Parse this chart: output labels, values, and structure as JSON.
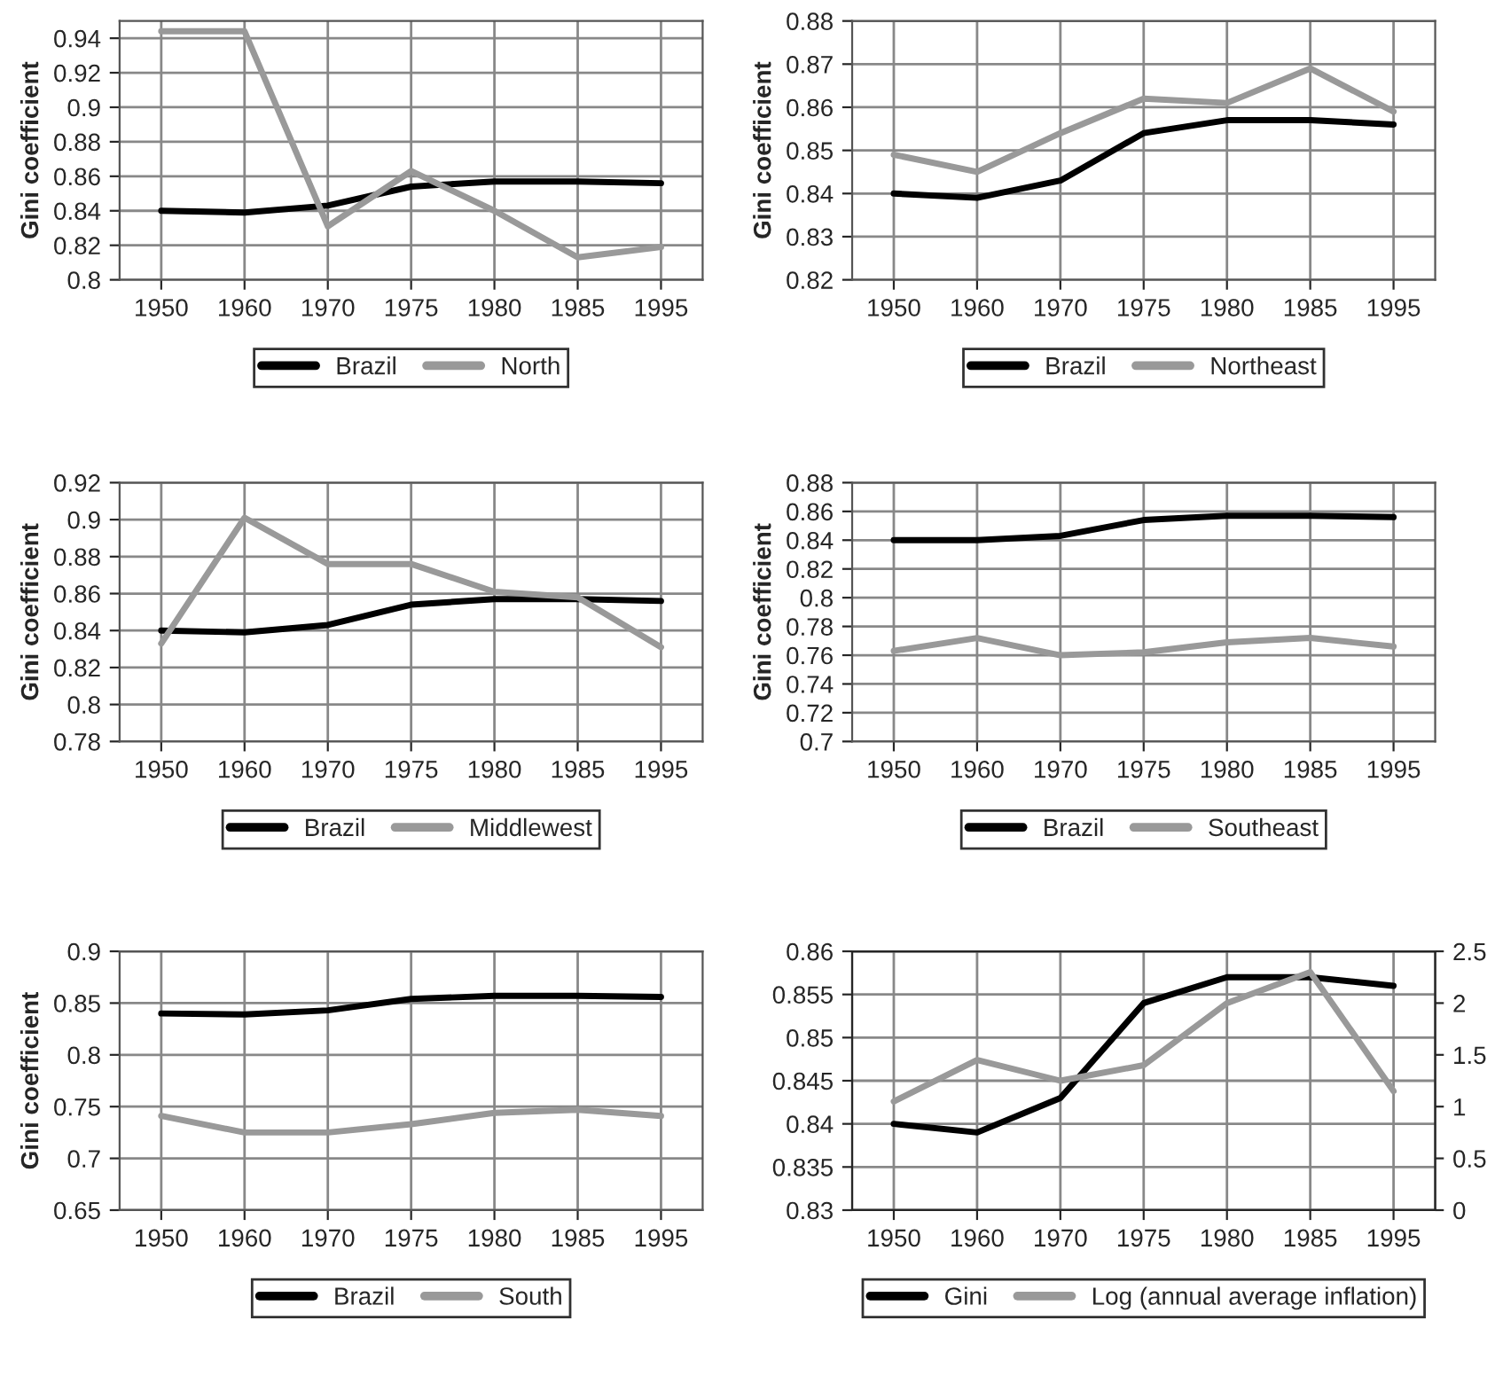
{
  "chart_data": [
    {
      "type": "line",
      "ylabel": "Gini coefficient",
      "categories": [
        "1950",
        "1960",
        "1970",
        "1975",
        "1980",
        "1985",
        "1995"
      ],
      "ylim": [
        0.8,
        0.95
      ],
      "yticks": [
        0.8,
        0.82,
        0.84,
        0.86,
        0.88,
        0.9,
        0.92,
        0.94
      ],
      "grid": true,
      "legend": "bottom",
      "series": [
        {
          "name": "Brazil",
          "color": "#000000",
          "values": [
            0.84,
            0.839,
            0.843,
            0.854,
            0.857,
            0.857,
            0.856
          ]
        },
        {
          "name": "North",
          "color": "#999999",
          "values": [
            0.944,
            0.944,
            0.831,
            0.863,
            0.84,
            0.813,
            0.819
          ]
        }
      ]
    },
    {
      "type": "line",
      "ylabel": "Gini coefficient",
      "categories": [
        "1950",
        "1960",
        "1970",
        "1975",
        "1980",
        "1985",
        "1995"
      ],
      "ylim": [
        0.82,
        0.88
      ],
      "yticks": [
        0.82,
        0.83,
        0.84,
        0.85,
        0.86,
        0.87,
        0.88
      ],
      "grid": true,
      "legend": "bottom",
      "series": [
        {
          "name": "Brazil",
          "color": "#000000",
          "values": [
            0.84,
            0.839,
            0.843,
            0.854,
            0.857,
            0.857,
            0.856
          ]
        },
        {
          "name": "Northeast",
          "color": "#999999",
          "values": [
            0.849,
            0.845,
            0.854,
            0.862,
            0.861,
            0.869,
            0.859
          ]
        }
      ]
    },
    {
      "type": "line",
      "ylabel": "Gini coefficient",
      "categories": [
        "1950",
        "1960",
        "1970",
        "1975",
        "1980",
        "1985",
        "1995"
      ],
      "ylim": [
        0.78,
        0.92
      ],
      "yticks": [
        0.78,
        0.8,
        0.82,
        0.84,
        0.86,
        0.88,
        0.9,
        0.92
      ],
      "grid": true,
      "legend": "bottom",
      "series": [
        {
          "name": "Brazil",
          "color": "#000000",
          "values": [
            0.84,
            0.839,
            0.843,
            0.854,
            0.857,
            0.857,
            0.856
          ]
        },
        {
          "name": "Middlewest",
          "color": "#999999",
          "values": [
            0.833,
            0.901,
            0.876,
            0.876,
            0.861,
            0.858,
            0.831
          ]
        }
      ]
    },
    {
      "type": "line",
      "ylabel": "Gini coefficient",
      "categories": [
        "1950",
        "1960",
        "1970",
        "1975",
        "1980",
        "1985",
        "1995"
      ],
      "ylim": [
        0.7,
        0.88
      ],
      "yticks": [
        0.7,
        0.72,
        0.74,
        0.76,
        0.78,
        0.8,
        0.82,
        0.84,
        0.86,
        0.88
      ],
      "grid": true,
      "legend": "bottom",
      "series": [
        {
          "name": "Brazil",
          "color": "#000000",
          "values": [
            0.84,
            0.84,
            0.843,
            0.854,
            0.857,
            0.857,
            0.856
          ]
        },
        {
          "name": "Southeast",
          "color": "#999999",
          "values": [
            0.763,
            0.772,
            0.76,
            0.762,
            0.769,
            0.772,
            0.766
          ]
        }
      ]
    },
    {
      "type": "line",
      "ylabel": "Gini coefficient",
      "categories": [
        "1950",
        "1960",
        "1970",
        "1975",
        "1980",
        "1985",
        "1995"
      ],
      "ylim": [
        0.65,
        0.9
      ],
      "yticks": [
        0.65,
        0.7,
        0.75,
        0.8,
        0.85,
        0.9
      ],
      "grid": true,
      "legend": "bottom",
      "series": [
        {
          "name": "Brazil",
          "color": "#000000",
          "values": [
            0.84,
            0.839,
            0.843,
            0.854,
            0.857,
            0.857,
            0.856
          ]
        },
        {
          "name": "South",
          "color": "#999999",
          "values": [
            0.741,
            0.725,
            0.725,
            0.733,
            0.744,
            0.747,
            0.741
          ]
        }
      ]
    },
    {
      "type": "line",
      "categories": [
        "1950",
        "1960",
        "1970",
        "1975",
        "1980",
        "1985",
        "1995"
      ],
      "ylim": [
        0.83,
        0.86
      ],
      "yticks": [
        0.83,
        0.835,
        0.84,
        0.845,
        0.85,
        0.855,
        0.86
      ],
      "y2lim": [
        0,
        2.5
      ],
      "y2ticks": [
        0,
        0.5,
        1,
        1.5,
        2,
        2.5
      ],
      "grid": true,
      "legend": "bottom",
      "series": [
        {
          "name": "Gini",
          "color": "#000000",
          "values": [
            0.84,
            0.839,
            0.843,
            0.854,
            0.857,
            0.857,
            0.856
          ]
        },
        {
          "name": "Log (annual average inflation)",
          "color": "#999999",
          "axis": "y2",
          "values": [
            1.05,
            1.45,
            1.25,
            1.4,
            2.0,
            2.3,
            1.15
          ]
        }
      ]
    }
  ]
}
